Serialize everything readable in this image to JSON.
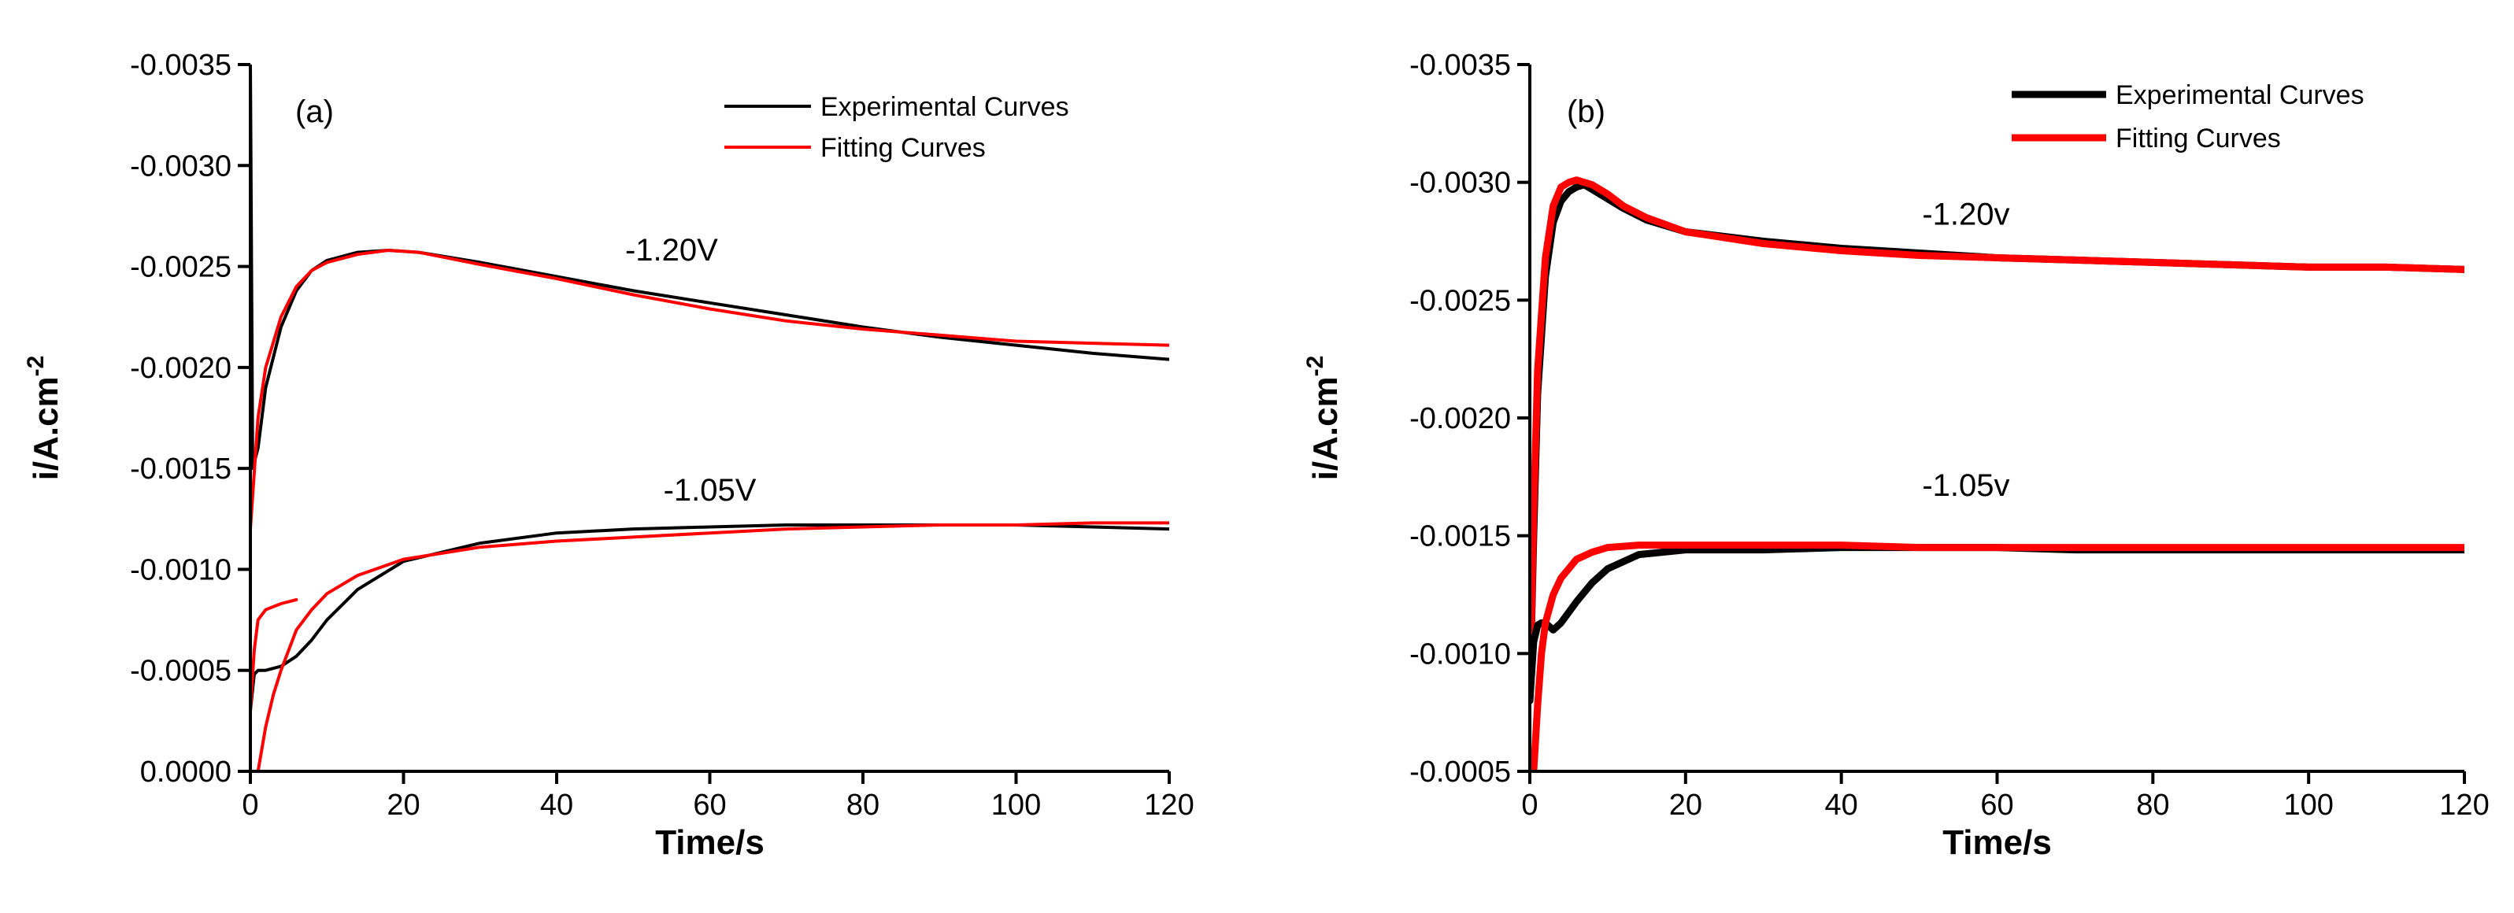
{
  "chart_data": [
    {
      "type": "line",
      "panel_label": "(a)",
      "xlabel": "Time/s",
      "ylabel_main": "i/A.cm",
      "ylabel_sup": "-2",
      "xlim": [
        0,
        120
      ],
      "ylim": [
        0.0,
        -0.0035
      ],
      "x_ticks": [
        0,
        20,
        40,
        60,
        80,
        100,
        120
      ],
      "x_tick_labels": [
        "0",
        "20",
        "40",
        "60",
        "80",
        "100",
        "120"
      ],
      "y_ticks": [
        0.0,
        -0.0005,
        -0.001,
        -0.0015,
        -0.002,
        -0.0025,
        -0.003,
        -0.0035
      ],
      "y_tick_labels": [
        "0.0000",
        "-0.0005",
        "-0.0010",
        "-0.0015",
        "-0.0020",
        "-0.0025",
        "-0.0030",
        "-0.0035"
      ],
      "legend_position": "top-right",
      "legend": [
        {
          "label": "Experimental Curves",
          "color": "#000000"
        },
        {
          "label": "Fitting Curves",
          "color": "#ff0000"
        }
      ],
      "annotations": [
        {
          "text": "-1.20V",
          "x": 55,
          "y": -0.00253
        },
        {
          "text": "-1.05V",
          "x": 60,
          "y": -0.00134
        }
      ],
      "series": [
        {
          "group": "-1.20V",
          "kind": "experimental",
          "color": "#000000",
          "x": [
            0,
            0.3,
            1,
            2,
            4,
            6,
            8,
            10,
            14,
            18,
            22,
            30,
            40,
            50,
            60,
            70,
            80,
            90,
            100,
            110,
            120
          ],
          "y": [
            -0.0035,
            -0.0015,
            -0.0016,
            -0.0019,
            -0.0022,
            -0.00238,
            -0.00248,
            -0.00253,
            -0.00257,
            -0.00258,
            -0.00257,
            -0.00252,
            -0.00245,
            -0.00238,
            -0.00232,
            -0.00226,
            -0.0022,
            -0.00215,
            -0.00211,
            -0.00207,
            -0.00204
          ]
        },
        {
          "group": "-1.20V",
          "kind": "fitting",
          "color": "#ff0000",
          "x": [
            0,
            1,
            2,
            4,
            6,
            8,
            10,
            14,
            18,
            22,
            30,
            40,
            50,
            60,
            70,
            80,
            90,
            100,
            110,
            120
          ],
          "y": [
            -0.0012,
            -0.00175,
            -0.002,
            -0.00225,
            -0.0024,
            -0.00248,
            -0.00252,
            -0.00256,
            -0.00258,
            -0.00257,
            -0.00251,
            -0.00244,
            -0.00236,
            -0.00229,
            -0.00223,
            -0.00219,
            -0.00216,
            -0.00213,
            -0.00212,
            -0.00211
          ]
        },
        {
          "group": "-1.05V",
          "kind": "experimental",
          "color": "#000000",
          "x": [
            0,
            0.5,
            1,
            2,
            4,
            6,
            8,
            10,
            14,
            20,
            30,
            40,
            50,
            60,
            70,
            80,
            90,
            100,
            110,
            120
          ],
          "y": [
            -0.0003,
            -0.00048,
            -0.0005,
            -0.0005,
            -0.00052,
            -0.00057,
            -0.00065,
            -0.00075,
            -0.0009,
            -0.00104,
            -0.00113,
            -0.00118,
            -0.0012,
            -0.00121,
            -0.00122,
            -0.00122,
            -0.00122,
            -0.00122,
            -0.00121,
            -0.0012
          ]
        },
        {
          "group": "-1.05V",
          "kind": "fitting",
          "color": "#ff0000",
          "x": [
            1,
            2,
            3,
            4,
            6,
            8,
            10,
            14,
            20,
            30,
            40,
            50,
            60,
            70,
            80,
            90,
            100,
            110,
            120
          ],
          "y": [
            0.0,
            -0.00022,
            -0.00038,
            -0.0005,
            -0.0007,
            -0.0008,
            -0.00088,
            -0.00097,
            -0.00105,
            -0.00111,
            -0.00114,
            -0.00116,
            -0.00118,
            -0.0012,
            -0.00121,
            -0.00122,
            -0.00122,
            -0.00123,
            -0.00123
          ]
        },
        {
          "group": "-1.05V",
          "kind": "fitting",
          "color": "#ff0000",
          "x": [
            0,
            0.5,
            1,
            2,
            4,
            6
          ],
          "y": [
            -0.0003,
            -0.0006,
            -0.00075,
            -0.0008,
            -0.00083,
            -0.00085
          ]
        }
      ]
    },
    {
      "type": "line",
      "panel_label": "(b)",
      "xlabel": "Time/s",
      "ylabel_main": "i/A.cm",
      "ylabel_sup": "-2",
      "xlim": [
        0,
        120
      ],
      "ylim": [
        -0.0005,
        -0.0035
      ],
      "x_ticks": [
        0,
        20,
        40,
        60,
        80,
        100,
        120
      ],
      "x_tick_labels": [
        "0",
        "20",
        "40",
        "60",
        "80",
        "100",
        "120"
      ],
      "y_ticks": [
        -0.0005,
        -0.001,
        -0.0015,
        -0.002,
        -0.0025,
        -0.003,
        -0.0035
      ],
      "y_tick_labels": [
        "-0.0005",
        "-0.0010",
        "-0.0015",
        "-0.0020",
        "-0.0025",
        "-0.0030",
        "-0.0035"
      ],
      "legend_position": "top-right",
      "legend": [
        {
          "label": "Experimental Curves",
          "color": "#000000"
        },
        {
          "label": "Fitting Curves",
          "color": "#ff0000"
        }
      ],
      "annotations": [
        {
          "text": "-1.20v",
          "x": 56,
          "y": -0.00282
        },
        {
          "text": "-1.05v",
          "x": 56,
          "y": -0.00167
        }
      ],
      "series": [
        {
          "group": "-1.20v",
          "kind": "experimental",
          "color": "#000000",
          "x": [
            0,
            0.5,
            1,
            2,
            3,
            4,
            5,
            6,
            7,
            8,
            10,
            12,
            15,
            20,
            30,
            40,
            50,
            60,
            70,
            80,
            90,
            100,
            110,
            120
          ],
          "y": [
            -0.0008,
            -0.0015,
            -0.0021,
            -0.0026,
            -0.00283,
            -0.00292,
            -0.00296,
            -0.00298,
            -0.00299,
            -0.00297,
            -0.00293,
            -0.00289,
            -0.00284,
            -0.00279,
            -0.00275,
            -0.00272,
            -0.0027,
            -0.00268,
            -0.00267,
            -0.00266,
            -0.00265,
            -0.00264,
            -0.00264,
            -0.00263
          ]
        },
        {
          "group": "-1.20v",
          "kind": "fitting",
          "color": "#ff0000",
          "x": [
            0,
            0.5,
            1,
            2,
            3,
            4,
            5,
            6,
            7,
            8,
            10,
            12,
            15,
            20,
            30,
            40,
            50,
            60,
            70,
            80,
            90,
            100,
            110,
            120
          ],
          "y": [
            -0.0008,
            -0.0016,
            -0.0022,
            -0.00268,
            -0.0029,
            -0.00298,
            -0.003,
            -0.00301,
            -0.003,
            -0.00299,
            -0.00295,
            -0.0029,
            -0.00285,
            -0.00279,
            -0.00274,
            -0.00271,
            -0.00269,
            -0.00268,
            -0.00267,
            -0.00266,
            -0.00265,
            -0.00264,
            -0.00264,
            -0.00263
          ]
        },
        {
          "group": "-1.05v",
          "kind": "experimental",
          "color": "#000000",
          "x": [
            0,
            0.5,
            1,
            1.5,
            2,
            3,
            4,
            6,
            8,
            10,
            14,
            20,
            30,
            40,
            50,
            60,
            70,
            80,
            90,
            100,
            110,
            120
          ],
          "y": [
            -0.0008,
            -0.00105,
            -0.00112,
            -0.00113,
            -0.00113,
            -0.0011,
            -0.00113,
            -0.00122,
            -0.0013,
            -0.00136,
            -0.00142,
            -0.00144,
            -0.00144,
            -0.00145,
            -0.00145,
            -0.00145,
            -0.00144,
            -0.00144,
            -0.00144,
            -0.00144,
            -0.00144,
            -0.00144
          ]
        },
        {
          "group": "-1.05v",
          "kind": "fitting",
          "color": "#ff0000",
          "x": [
            0.5,
            1,
            1.5,
            2,
            3,
            4,
            6,
            8,
            10,
            14,
            20,
            30,
            40,
            50,
            60,
            70,
            80,
            90,
            100,
            110,
            120
          ],
          "y": [
            -0.0005,
            -0.00078,
            -0.001,
            -0.00113,
            -0.00125,
            -0.00132,
            -0.0014,
            -0.00143,
            -0.00145,
            -0.00146,
            -0.00146,
            -0.00146,
            -0.00146,
            -0.00145,
            -0.00145,
            -0.00145,
            -0.00145,
            -0.00145,
            -0.00145,
            -0.00145,
            -0.00145
          ]
        }
      ]
    }
  ]
}
